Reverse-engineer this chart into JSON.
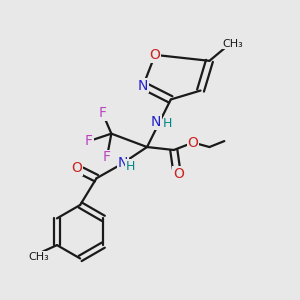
{
  "bg_color": "#e8e8e8",
  "bond_color": "#1a1a1a",
  "bond_width": 1.6,
  "dbo": 0.012,
  "colors": {
    "N": "#2222cc",
    "O": "#cc2222",
    "F": "#bb44bb",
    "H": "#008888",
    "C": "#1a1a1a"
  }
}
